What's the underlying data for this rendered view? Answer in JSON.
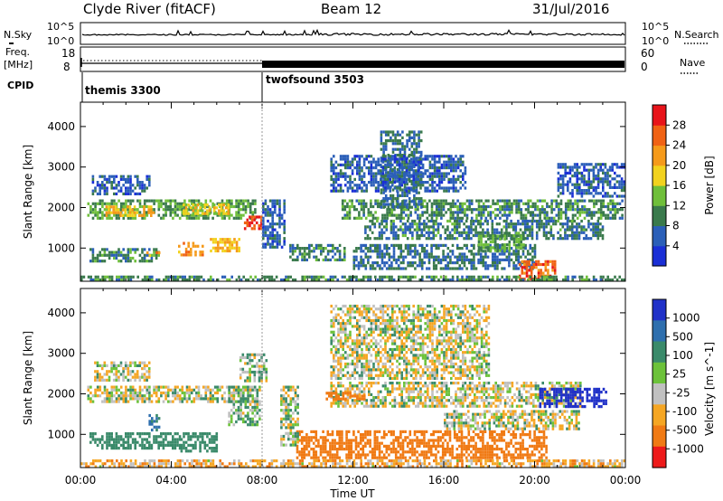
{
  "header": {
    "station": "Clyde River (fitACF)",
    "beam": "Beam 12",
    "date": "31/Jul/2016"
  },
  "top_panels": {
    "nsky_label": "N.Sky",
    "nsearch_label": "N.Search",
    "freq_label_line1": "Freq.",
    "freq_label_line2": "[MHz]",
    "nave_label": "Nave",
    "cpid_label": "CPID",
    "n_ticks_left": [
      "10^5",
      "10^0"
    ],
    "n_ticks_right": [
      "10^5",
      "10^0"
    ],
    "freq_ticks": [
      "18",
      "8"
    ],
    "nave_ticks": [
      "60",
      "0"
    ],
    "cpid_modes": [
      {
        "name": "themis 3300",
        "start_hour": 0
      },
      {
        "name": "twofsound 3503",
        "start_hour": 8
      }
    ]
  },
  "x_axis": {
    "label": "Time UT",
    "ticks": [
      "00:00",
      "04:00",
      "08:00",
      "12:00",
      "16:00",
      "20:00",
      "00:00"
    ]
  },
  "colors": {
    "power": [
      "#1a2fd6",
      "#2b5fb8",
      "#3a7a4c",
      "#6fbf3a",
      "#f2d21e",
      "#f59a1a",
      "#f06214",
      "#e8141a"
    ],
    "velocity": [
      "#2031c8",
      "#2e6fae",
      "#3a8a6a",
      "#6cc23a",
      "#c0c0c0",
      "#f5a623",
      "#f07a14",
      "#ee1a1a"
    ]
  },
  "chart_data": [
    {
      "type": "heatmap",
      "ylabel": "Slant Range [km]",
      "ylim": [
        180,
        4600
      ],
      "yticks": [
        "4000",
        "3000",
        "2000",
        "1000"
      ],
      "xlim_hours": [
        0,
        24
      ],
      "colorbar": {
        "label": "Power [dB]",
        "ticks": [
          "28",
          "24",
          "20",
          "16",
          "12",
          "8",
          "4"
        ],
        "range": [
          0,
          32
        ]
      },
      "regions": [
        {
          "t0": 0.3,
          "t1": 7.7,
          "r0": 1750,
          "r1": 2200,
          "value": 12
        },
        {
          "t0": 1.1,
          "t1": 3.2,
          "r0": 1800,
          "r1": 2050,
          "value": 20
        },
        {
          "t0": 4.5,
          "t1": 6.5,
          "r0": 1850,
          "r1": 2100,
          "value": 18
        },
        {
          "t0": 7.2,
          "t1": 8.0,
          "r0": 1500,
          "r1": 1800,
          "value": 28
        },
        {
          "t0": 0.4,
          "t1": 3.5,
          "r0": 700,
          "r1": 1000,
          "value": 10
        },
        {
          "t0": 4.3,
          "t1": 5.4,
          "r0": 800,
          "r1": 1150,
          "value": 22
        },
        {
          "t0": 5.7,
          "t1": 7.0,
          "r0": 900,
          "r1": 1250,
          "value": 20
        },
        {
          "t0": 2.9,
          "t1": 3.6,
          "r0": 780,
          "r1": 920,
          "value": 22
        },
        {
          "t0": 0.5,
          "t1": 3.0,
          "r0": 2350,
          "r1": 2800,
          "value": 6
        },
        {
          "t0": 8.0,
          "t1": 9.0,
          "r0": 1000,
          "r1": 2200,
          "value": 6
        },
        {
          "t0": 9.2,
          "t1": 11.6,
          "r0": 700,
          "r1": 1100,
          "value": 9
        },
        {
          "t0": 11.5,
          "t1": 23.9,
          "r0": 1700,
          "r1": 2200,
          "value": 10
        },
        {
          "t0": 13.2,
          "t1": 15.0,
          "r0": 2000,
          "r1": 3900,
          "value": 8
        },
        {
          "t0": 11.0,
          "t1": 17.0,
          "r0": 2400,
          "r1": 3300,
          "value": 6
        },
        {
          "t0": 12.5,
          "t1": 23.0,
          "r0": 1200,
          "r1": 1700,
          "value": 9
        },
        {
          "t0": 12.0,
          "t1": 20.0,
          "r0": 500,
          "r1": 1100,
          "value": 8
        },
        {
          "t0": 17.5,
          "t1": 19.5,
          "r0": 900,
          "r1": 1400,
          "value": 12
        },
        {
          "t0": 19.3,
          "t1": 20.9,
          "r0": 200,
          "r1": 700,
          "value": 26
        },
        {
          "t0": 21.0,
          "t1": 24.0,
          "r0": 2300,
          "r1": 3100,
          "value": 6
        },
        {
          "t0": 0.0,
          "t1": 24.0,
          "r0": 180,
          "r1": 320,
          "value": 10
        }
      ]
    },
    {
      "type": "heatmap",
      "ylabel": "Slant Range [km]",
      "ylim": [
        180,
        4600
      ],
      "yticks": [
        "4000",
        "3000",
        "2000",
        "1000"
      ],
      "xlim_hours": [
        0,
        24
      ],
      "colorbar": {
        "label": "Velocity [m s^-1]",
        "ticks": [
          "1000",
          "500",
          "100",
          "25",
          "-25",
          "-100",
          "-500",
          "-1000"
        ],
        "range": [
          -1200,
          1200
        ]
      },
      "regions": [
        {
          "t0": 0.3,
          "t1": 7.6,
          "r0": 1800,
          "r1": 2200,
          "value": 0
        },
        {
          "t0": 0.4,
          "t1": 4.4,
          "r0": 650,
          "r1": 1050,
          "value": 150
        },
        {
          "t0": 4.4,
          "t1": 6.0,
          "r0": 600,
          "r1": 1050,
          "value": 200
        },
        {
          "t0": 6.5,
          "t1": 7.9,
          "r0": 1200,
          "r1": 2200,
          "value": 60
        },
        {
          "t0": 7.0,
          "t1": 8.2,
          "r0": 2300,
          "r1": 3000,
          "value": 40
        },
        {
          "t0": 3.0,
          "t1": 3.5,
          "r0": 1100,
          "r1": 1500,
          "value": 300
        },
        {
          "t0": 0.6,
          "t1": 3.0,
          "r0": 2300,
          "r1": 2800,
          "value": 0
        },
        {
          "t0": 9.5,
          "t1": 20.5,
          "r0": 450,
          "r1": 1100,
          "value": -300
        },
        {
          "t0": 11.0,
          "t1": 22.0,
          "r0": 1700,
          "r1": 2300,
          "value": 0
        },
        {
          "t0": 11.0,
          "t1": 18.0,
          "r0": 2400,
          "r1": 4200,
          "value": 0
        },
        {
          "t0": 10.8,
          "t1": 12.5,
          "r0": 1850,
          "r1": 2050,
          "value": -200
        },
        {
          "t0": 20.2,
          "t1": 23.2,
          "r0": 1650,
          "r1": 2150,
          "value": 900
        },
        {
          "t0": 16.0,
          "t1": 22.0,
          "r0": 1100,
          "r1": 1600,
          "value": 0
        },
        {
          "t0": 8.8,
          "t1": 9.6,
          "r0": 700,
          "r1": 2200,
          "value": 20
        },
        {
          "t0": 0.0,
          "t1": 24.0,
          "r0": 180,
          "r1": 380,
          "value": -60
        }
      ]
    }
  ]
}
